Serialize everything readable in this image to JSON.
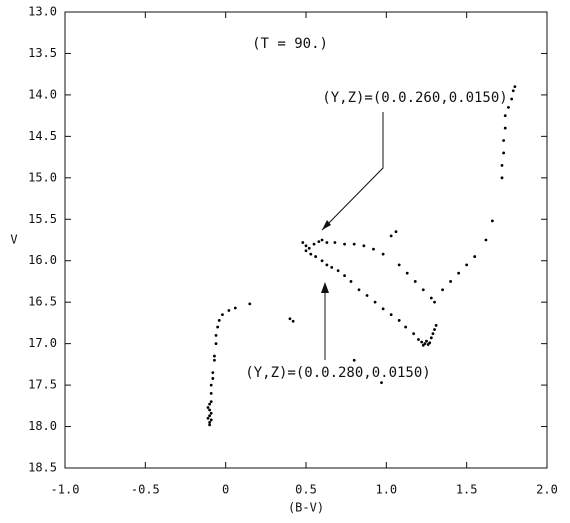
{
  "chart_data": {
    "type": "scatter",
    "annotations": [
      "(T = 90.)",
      "(Y,Z)=(0.0.260,0.0150)",
      "(Y,Z)=(0.0.280,0.0150)"
    ],
    "x_label": "(B-V)",
    "y_label": "V",
    "xlim": [
      -1.0,
      2.0
    ],
    "xticks": [
      {
        "value": -1.0,
        "label": "-1.0"
      },
      -0.5,
      0,
      0.5,
      {
        "value": 1.0,
        "label": "1.0"
      },
      1.5,
      {
        "value": 2.0,
        "label": "2.0"
      }
    ],
    "ylim": [
      18.5,
      13.0
    ],
    "yticks": [
      {
        "value": 13.0,
        "label": "13.0"
      },
      13.5,
      {
        "value": 14.0,
        "label": "14.0"
      },
      14.5,
      {
        "value": 15.0,
        "label": "15.0"
      },
      15.5,
      {
        "value": 16.0,
        "label": "16.0"
      },
      16.5,
      {
        "value": 17.0,
        "label": "17.0"
      },
      17.5,
      {
        "value": 18.0,
        "label": "18.0"
      },
      18.5
    ],
    "series": [
      {
        "color": "#000000",
        "x": [
          -0.1,
          -0.1,
          -0.09,
          -0.11,
          -0.1,
          -0.09,
          -0.1,
          -0.11,
          -0.1,
          -0.09,
          -0.09,
          -0.09,
          -0.08,
          -0.08,
          -0.07,
          -0.07,
          -0.06,
          -0.06,
          -0.05,
          -0.04,
          -0.02,
          0.02,
          0.06,
          0.15,
          0.4,
          0.42,
          0.8,
          0.97,
          0.48,
          0.5,
          0.52,
          0.55,
          0.58,
          0.6,
          0.63,
          0.5,
          0.53,
          0.56,
          0.6,
          0.63,
          0.66,
          0.7,
          0.74,
          0.78,
          0.83,
          0.88,
          0.93,
          0.98,
          1.03,
          1.08,
          1.12,
          1.17,
          1.2,
          1.22,
          1.24,
          1.26,
          1.27,
          1.23,
          1.25,
          1.28,
          1.29,
          1.3,
          1.31,
          0.68,
          0.74,
          0.8,
          0.86,
          0.92,
          0.98,
          1.03,
          1.06,
          1.08,
          1.13,
          1.18,
          1.23,
          1.28,
          1.3,
          1.35,
          1.4,
          1.45,
          1.5,
          1.55,
          1.62,
          1.66,
          1.72,
          1.72,
          1.73,
          1.73,
          1.74,
          1.74,
          1.76,
          1.78,
          1.79,
          1.8
        ],
        "values": [
          17.98,
          17.95,
          17.92,
          17.9,
          17.87,
          17.84,
          17.8,
          17.77,
          17.73,
          17.7,
          17.6,
          17.5,
          17.42,
          17.35,
          17.2,
          17.15,
          17.0,
          16.9,
          16.8,
          16.72,
          16.65,
          16.6,
          16.57,
          16.52,
          16.7,
          16.73,
          17.2,
          17.47,
          15.78,
          15.82,
          15.85,
          15.8,
          15.77,
          15.75,
          15.78,
          15.88,
          15.92,
          15.95,
          16.0,
          16.05,
          16.08,
          16.12,
          16.18,
          16.25,
          16.35,
          16.42,
          16.5,
          16.58,
          16.65,
          16.72,
          16.8,
          16.88,
          16.95,
          16.98,
          17.0,
          17.01,
          16.99,
          17.02,
          16.97,
          16.93,
          16.88,
          16.83,
          16.78,
          15.78,
          15.8,
          15.8,
          15.82,
          15.86,
          15.92,
          15.7,
          15.65,
          16.05,
          16.15,
          16.25,
          16.35,
          16.45,
          16.5,
          16.35,
          16.25,
          16.15,
          16.05,
          15.95,
          15.75,
          15.52,
          15.0,
          14.85,
          14.7,
          14.55,
          14.4,
          14.25,
          14.15,
          14.05,
          13.95,
          13.9
        ]
      }
    ]
  }
}
